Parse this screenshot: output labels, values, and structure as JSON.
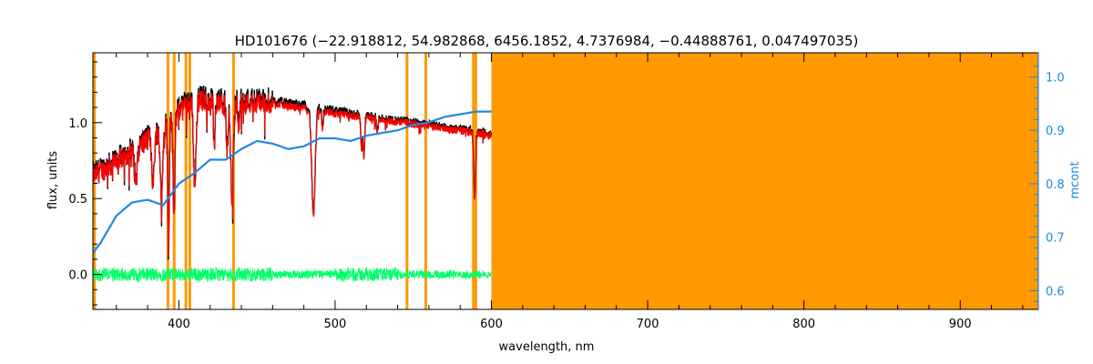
{
  "chart_data": {
    "type": "line",
    "title": "HD101676    (−22.918812, 54.982868, 6456.1852, 4.7376984, −0.44888761, 0.047497035)",
    "xlabel": "wavelength, nm",
    "ylabel": "flux, units",
    "y2label": "mcont",
    "xlim": [
      345,
      950
    ],
    "ylim": [
      -0.23,
      1.46
    ],
    "y2lim": [
      0.565,
      1.045
    ],
    "x_ticks": [
      400,
      500,
      600,
      700,
      800,
      900
    ],
    "x_tick_labels": [
      "400",
      "500",
      "600",
      "700",
      "800",
      "900"
    ],
    "y_ticks": [
      0.0,
      0.5,
      1.0
    ],
    "y_tick_labels": [
      "0.0",
      "0.5",
      "1.0"
    ],
    "y2_ticks": [
      0.6,
      0.7,
      0.8,
      0.9,
      1.0
    ],
    "y2_tick_labels": [
      "0.6",
      "0.7",
      "0.8",
      "0.9",
      "1.0"
    ],
    "masked_lines_nm": [
      346,
      393,
      397,
      404.5,
      407,
      435,
      546,
      558,
      588.5,
      590
    ],
    "masked_region_nm": [
      600,
      950
    ],
    "spectrum_range_nm": [
      345,
      600
    ],
    "absorption_lines": [
      {
        "x": 372.5,
        "depth": 0.25,
        "w": 1.0
      },
      {
        "x": 383.5,
        "depth": 0.35,
        "w": 0.8
      },
      {
        "x": 388.9,
        "depth": 0.45,
        "w": 0.9
      },
      {
        "x": 393.4,
        "depth": 0.8,
        "w": 0.5
      },
      {
        "x": 396.9,
        "depth": 0.6,
        "w": 0.6
      },
      {
        "x": 410.2,
        "depth": 0.5,
        "w": 0.8
      },
      {
        "x": 422.7,
        "depth": 0.25,
        "w": 0.6
      },
      {
        "x": 430.8,
        "depth": 0.3,
        "w": 0.6
      },
      {
        "x": 434.0,
        "depth": 0.55,
        "w": 0.9
      },
      {
        "x": 438.4,
        "depth": 0.15,
        "w": 0.5
      },
      {
        "x": 486.1,
        "depth": 0.65,
        "w": 1.1
      },
      {
        "x": 492.0,
        "depth": 0.12,
        "w": 0.5
      },
      {
        "x": 516.9,
        "depth": 0.22,
        "w": 0.5
      },
      {
        "x": 518.4,
        "depth": 0.25,
        "w": 0.5
      },
      {
        "x": 527.0,
        "depth": 0.1,
        "w": 0.5
      },
      {
        "x": 589.0,
        "depth": 0.3,
        "w": 0.5
      },
      {
        "x": 589.6,
        "depth": 0.28,
        "w": 0.5
      }
    ],
    "series": [
      {
        "x": [
          345,
          355,
          365,
          375,
          385,
          395,
          405,
          415,
          425,
          435,
          445,
          455,
          465,
          475,
          485,
          495,
          505,
          515,
          525,
          535,
          545,
          555,
          565,
          575,
          585,
          595,
          600
        ],
        "values": [
          0.66,
          0.72,
          0.79,
          0.86,
          0.94,
          1.04,
          1.14,
          1.17,
          1.16,
          1.15,
          1.15,
          1.15,
          1.14,
          1.12,
          1.11,
          1.09,
          1.07,
          1.05,
          1.04,
          1.02,
          1.01,
          0.99,
          0.98,
          0.96,
          0.95,
          0.93,
          0.92
        ],
        "color": "#000000"
      },
      {
        "x": [
          345,
          355,
          365,
          375,
          385,
          395,
          405,
          415,
          425,
          435,
          445,
          455,
          465,
          475,
          485,
          495,
          505,
          515,
          525,
          535,
          545,
          555,
          565,
          575,
          585,
          595,
          600
        ],
        "values": [
          0.65,
          0.71,
          0.78,
          0.85,
          0.93,
          1.03,
          1.12,
          1.15,
          1.14,
          1.13,
          1.13,
          1.13,
          1.12,
          1.1,
          1.09,
          1.07,
          1.05,
          1.04,
          1.03,
          1.01,
          1.0,
          0.98,
          0.97,
          0.955,
          0.94,
          0.925,
          0.915
        ],
        "color": "#ff0000"
      },
      {
        "x": [
          345,
          355,
          365,
          375,
          385,
          395,
          405,
          415,
          425,
          435,
          445,
          455,
          465,
          475,
          485,
          495,
          505,
          515,
          525,
          535,
          545,
          555,
          565,
          575,
          585,
          595,
          600
        ],
        "values": [
          0.0,
          0.0,
          0.0,
          0.0,
          0.0,
          0.0,
          0.0,
          0.0,
          0.0,
          0.0,
          0.0,
          0.0,
          0.0,
          0.0,
          0.0,
          0.0,
          0.0,
          0.0,
          0.0,
          0.0,
          0.0,
          0.0,
          0.0,
          0.0,
          0.0,
          0.0,
          0.0
        ],
        "spread": 0.035,
        "color": "#00ff66"
      },
      {
        "name": "mcont",
        "axis": "right",
        "x": [
          345,
          350,
          360,
          370,
          380,
          390,
          400,
          410,
          420,
          430,
          440,
          450,
          460,
          470,
          480,
          490,
          500,
          510,
          520,
          530,
          540,
          550,
          560,
          570,
          580,
          590,
          600
        ],
        "values": [
          0.67,
          0.69,
          0.74,
          0.765,
          0.77,
          0.76,
          0.8,
          0.82,
          0.845,
          0.845,
          0.865,
          0.88,
          0.875,
          0.865,
          0.87,
          0.885,
          0.885,
          0.88,
          0.89,
          0.895,
          0.9,
          0.91,
          0.915,
          0.925,
          0.93,
          0.935,
          0.935
        ],
        "color": "#1e88e5"
      }
    ]
  },
  "colors": {
    "frame": "#000000",
    "mask": "#ff9900",
    "mcont_axis": "#1e88e5",
    "flux_obs": "#000000",
    "flux_model": "#ff0000",
    "residual": "#00ff66"
  }
}
